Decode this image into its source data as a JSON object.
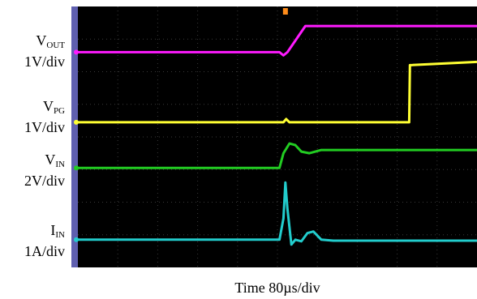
{
  "labels": {
    "vout": {
      "main": "V",
      "sub": "OUT",
      "scale": "1V/div"
    },
    "vpg": {
      "main": "V",
      "sub": "PG",
      "scale": "1V/div"
    },
    "vin": {
      "main": "V",
      "sub": "IN",
      "scale": "2V/div"
    },
    "iin": {
      "main": "I",
      "sub": "IN",
      "scale": "1A/div"
    }
  },
  "time_label": "Time  80µs/div",
  "colors": {
    "background": "#000000",
    "frame": "#5f5faf",
    "grid": "#3a3a3a",
    "vout": "#ff1aff",
    "vpg": "#ffff33",
    "vin": "#22cc22",
    "iin": "#22cccc"
  },
  "chart_data": {
    "type": "line",
    "xlabel": "Time  80µs/div",
    "x_unit": "divisions",
    "xlim": [
      0,
      10
    ],
    "ylim": [
      0,
      8
    ],
    "grid": true,
    "trigger_position_div": 5.2,
    "series": [
      {
        "name": "VOUT",
        "key": "vout",
        "scale": "1V/div",
        "x": [
          0,
          5.05,
          5.15,
          5.25,
          5.7,
          10
        ],
        "y": [
          6.6,
          6.6,
          6.5,
          6.6,
          7.4,
          7.4
        ]
      },
      {
        "name": "VPG",
        "key": "vpg",
        "scale": "1V/div",
        "x": [
          0,
          5.15,
          5.22,
          5.3,
          8.3,
          8.32,
          10
        ],
        "y": [
          4.45,
          4.45,
          4.55,
          4.45,
          4.45,
          6.2,
          6.3
        ]
      },
      {
        "name": "VIN",
        "key": "vin",
        "scale": "2V/div",
        "x": [
          0,
          5.05,
          5.15,
          5.3,
          5.45,
          5.6,
          5.8,
          6.1,
          6.3,
          10
        ],
        "y": [
          3.05,
          3.05,
          3.5,
          3.8,
          3.75,
          3.55,
          3.5,
          3.6,
          3.6,
          3.6
        ]
      },
      {
        "name": "IIN",
        "key": "iin",
        "scale": "1A/div",
        "x": [
          0,
          5.05,
          5.15,
          5.2,
          5.25,
          5.35,
          5.45,
          5.6,
          5.75,
          5.9,
          6.1,
          6.4,
          10
        ],
        "y": [
          0.85,
          0.85,
          1.5,
          2.6,
          1.8,
          0.7,
          0.85,
          0.8,
          1.05,
          1.1,
          0.85,
          0.82,
          0.82
        ]
      }
    ]
  }
}
